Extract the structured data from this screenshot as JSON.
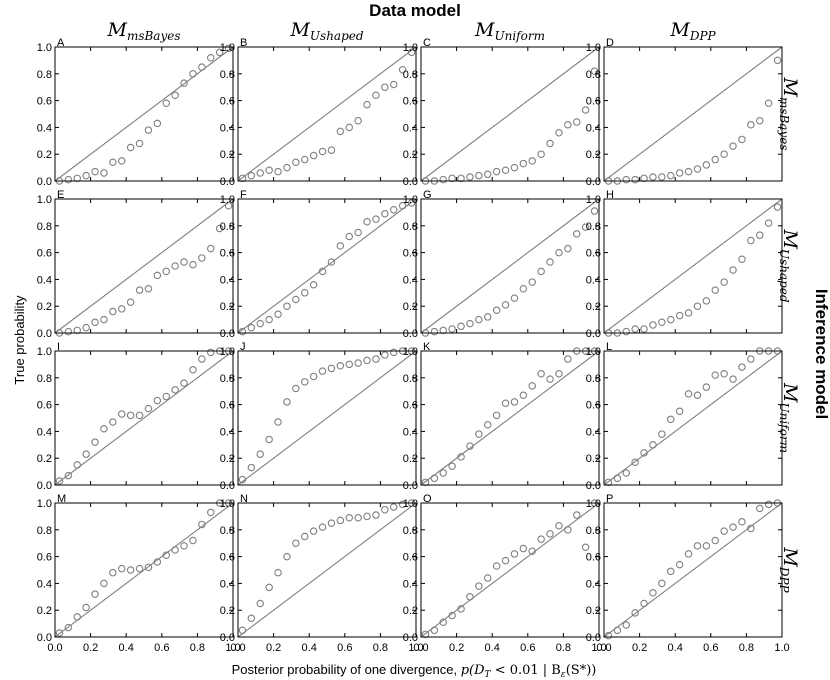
{
  "figure": {
    "top_title": "Data model",
    "right_title": "Inference model",
    "ylabel": "True probability",
    "xlabel_text": "Posterior probability of one divergence, ",
    "xlabel_math": "p(D",
    "xlabel_math_sub": "T",
    "xlabel_math_tail": " < 0.01 | B",
    "xlabel_math_sub2": "ε",
    "xlabel_math_end": "(S*))"
  },
  "columns": [
    {
      "main": "M",
      "sub": "msBayes"
    },
    {
      "main": "M",
      "sub": "Ushaped"
    },
    {
      "main": "M",
      "sub": "Uniform"
    },
    {
      "main": "M",
      "sub": "DPP"
    }
  ],
  "rows": [
    {
      "main": "M",
      "sub": "msBayes"
    },
    {
      "main": "M",
      "sub": "Ushaped"
    },
    {
      "main": "M",
      "sub": "Uniform"
    },
    {
      "main": "M",
      "sub": "DPP"
    }
  ],
  "ticks": {
    "x": [
      "0.0",
      "0.2",
      "0.4",
      "0.6",
      "0.8",
      "1.0"
    ],
    "y": [
      "0.0",
      "0.2",
      "0.4",
      "0.6",
      "0.8",
      "1.0"
    ]
  },
  "colors": {
    "marker": "#7f7f7f",
    "diagonal": "#808080",
    "axes": "#000000"
  },
  "chart_data": {
    "type": "scatter",
    "grid": false,
    "xlim": [
      0,
      1
    ],
    "ylim": [
      0,
      1
    ],
    "reference_line": "y = x",
    "x": [
      0.025,
      0.075,
      0.125,
      0.175,
      0.225,
      0.275,
      0.325,
      0.375,
      0.425,
      0.475,
      0.525,
      0.575,
      0.625,
      0.675,
      0.725,
      0.775,
      0.825,
      0.875,
      0.925,
      0.975
    ],
    "panels": [
      {
        "label": "A",
        "y": [
          0.0,
          0.01,
          0.02,
          0.04,
          0.07,
          0.06,
          0.14,
          0.15,
          0.25,
          0.28,
          0.38,
          0.43,
          0.58,
          0.64,
          0.73,
          0.8,
          0.85,
          0.92,
          0.96,
          0.99
        ]
      },
      {
        "label": "B",
        "y": [
          0.02,
          0.04,
          0.06,
          0.08,
          0.07,
          0.1,
          0.14,
          0.16,
          0.19,
          0.22,
          0.23,
          0.37,
          0.4,
          0.45,
          0.57,
          0.64,
          0.7,
          0.72,
          0.83,
          0.96
        ]
      },
      {
        "label": "C",
        "y": [
          0.0,
          0.0,
          0.01,
          0.02,
          0.02,
          0.03,
          0.04,
          0.05,
          0.07,
          0.08,
          0.1,
          0.13,
          0.15,
          0.2,
          0.28,
          0.36,
          0.42,
          0.44,
          0.53,
          0.82
        ]
      },
      {
        "label": "D",
        "y": [
          0.0,
          0.0,
          0.01,
          0.01,
          0.02,
          0.03,
          0.03,
          0.04,
          0.06,
          0.07,
          0.09,
          0.12,
          0.16,
          0.2,
          0.26,
          0.31,
          0.42,
          0.45,
          0.58,
          0.9
        ]
      },
      {
        "label": "E",
        "y": [
          0.0,
          0.01,
          0.02,
          0.04,
          0.08,
          0.1,
          0.16,
          0.18,
          0.23,
          0.32,
          0.33,
          0.43,
          0.46,
          0.5,
          0.53,
          0.51,
          0.56,
          0.63,
          0.78,
          0.95
        ]
      },
      {
        "label": "F",
        "y": [
          0.01,
          0.04,
          0.07,
          0.1,
          0.14,
          0.2,
          0.25,
          0.3,
          0.36,
          0.46,
          0.53,
          0.65,
          0.72,
          0.75,
          0.83,
          0.85,
          0.89,
          0.92,
          0.95,
          0.97
        ]
      },
      {
        "label": "G",
        "y": [
          0.0,
          0.01,
          0.02,
          0.03,
          0.05,
          0.07,
          0.1,
          0.12,
          0.17,
          0.21,
          0.26,
          0.33,
          0.38,
          0.46,
          0.53,
          0.6,
          0.63,
          0.74,
          0.79,
          0.91
        ]
      },
      {
        "label": "H",
        "y": [
          0.0,
          0.0,
          0.01,
          0.03,
          0.03,
          0.06,
          0.08,
          0.1,
          0.13,
          0.15,
          0.2,
          0.24,
          0.32,
          0.38,
          0.47,
          0.55,
          0.69,
          0.73,
          0.82,
          0.94
        ]
      },
      {
        "label": "I",
        "y": [
          0.03,
          0.07,
          0.15,
          0.23,
          0.32,
          0.42,
          0.47,
          0.53,
          0.52,
          0.52,
          0.57,
          0.63,
          0.66,
          0.71,
          0.76,
          0.86,
          0.94,
          0.99,
          1.0,
          1.0
        ]
      },
      {
        "label": "J",
        "y": [
          0.04,
          0.13,
          0.23,
          0.34,
          0.47,
          0.62,
          0.72,
          0.77,
          0.81,
          0.85,
          0.87,
          0.89,
          0.9,
          0.91,
          0.93,
          0.94,
          0.97,
          0.99,
          1.0,
          1.0
        ]
      },
      {
        "label": "K",
        "y": [
          0.02,
          0.05,
          0.09,
          0.14,
          0.21,
          0.29,
          0.38,
          0.45,
          0.52,
          0.61,
          0.62,
          0.67,
          0.74,
          0.83,
          0.79,
          0.83,
          0.94,
          1.0,
          1.0,
          1.0
        ]
      },
      {
        "label": "L",
        "y": [
          0.02,
          0.05,
          0.09,
          0.17,
          0.24,
          0.3,
          0.38,
          0.49,
          0.55,
          0.68,
          0.67,
          0.73,
          0.82,
          0.83,
          0.79,
          0.88,
          0.94,
          1.0,
          1.0,
          1.0
        ]
      },
      {
        "label": "M",
        "y": [
          0.03,
          0.07,
          0.15,
          0.22,
          0.32,
          0.4,
          0.48,
          0.51,
          0.5,
          0.51,
          0.52,
          0.56,
          0.61,
          0.65,
          0.68,
          0.72,
          0.84,
          0.93,
          1.0,
          1.0
        ]
      },
      {
        "label": "N",
        "y": [
          0.05,
          0.14,
          0.25,
          0.37,
          0.48,
          0.6,
          0.7,
          0.75,
          0.79,
          0.82,
          0.85,
          0.87,
          0.89,
          0.89,
          0.9,
          0.91,
          0.95,
          0.97,
          0.99,
          1.0
        ]
      },
      {
        "label": "O",
        "y": [
          0.02,
          0.05,
          0.11,
          0.16,
          0.21,
          0.3,
          0.38,
          0.44,
          0.53,
          0.57,
          0.62,
          0.66,
          0.64,
          0.73,
          0.77,
          0.83,
          0.8,
          0.91,
          0.67,
          1.0
        ]
      },
      {
        "label": "P",
        "y": [
          0.01,
          0.05,
          0.09,
          0.18,
          0.25,
          0.33,
          0.4,
          0.49,
          0.54,
          0.62,
          0.68,
          0.68,
          0.72,
          0.79,
          0.82,
          0.86,
          0.81,
          0.96,
          0.99,
          1.0
        ]
      }
    ]
  }
}
